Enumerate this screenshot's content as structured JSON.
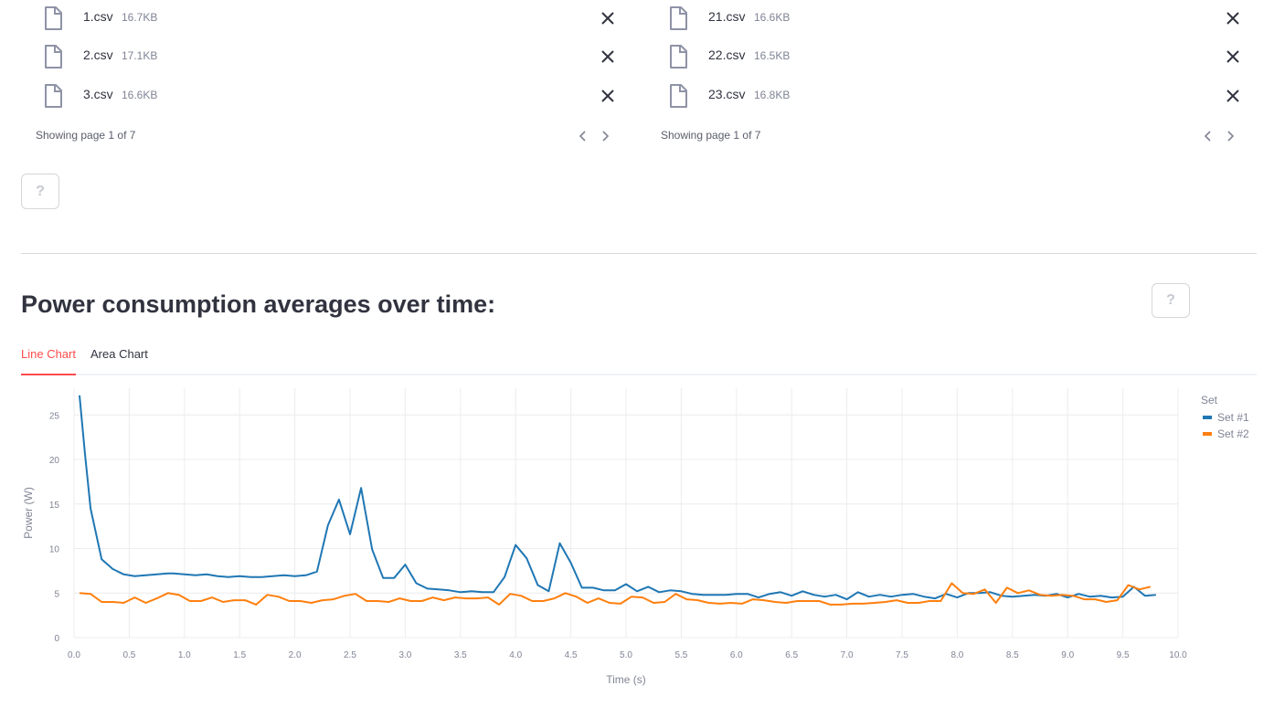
{
  "uploader": {
    "columns": [
      {
        "files": [
          {
            "name": "1.csv",
            "size": "16.7KB"
          },
          {
            "name": "2.csv",
            "size": "17.1KB"
          },
          {
            "name": "3.csv",
            "size": "16.6KB"
          }
        ],
        "pager_text": "Showing page 1 of 7"
      },
      {
        "files": [
          {
            "name": "21.csv",
            "size": "16.6KB"
          },
          {
            "name": "22.csv",
            "size": "16.5KB"
          },
          {
            "name": "23.csv",
            "size": "16.8KB"
          }
        ],
        "pager_text": "Showing page 1 of 7"
      }
    ],
    "help_label": "?"
  },
  "section": {
    "title": "Power consumption averages over time:",
    "help_label": "?"
  },
  "tabs": [
    {
      "label": "Line Chart",
      "active": true
    },
    {
      "label": "Area Chart",
      "active": false
    }
  ],
  "icons": {
    "file": "file-icon",
    "close": "close-icon",
    "prev": "chevron-left-icon",
    "next": "chevron-right-icon"
  },
  "colors": {
    "accent": "#ff4b4b",
    "set1": "#1f77b4",
    "set2": "#ff7f0e"
  },
  "chart_data": {
    "type": "line",
    "xlabel": "Time (s)",
    "ylabel": "Power (W)",
    "xlim": [
      0,
      10
    ],
    "ylim": [
      0,
      28
    ],
    "x_ticks": [
      "0.0",
      "0.5",
      "1.0",
      "1.5",
      "2.0",
      "2.5",
      "3.0",
      "3.5",
      "4.0",
      "4.5",
      "5.0",
      "5.5",
      "6.0",
      "6.5",
      "7.0",
      "7.5",
      "8.0",
      "8.5",
      "9.0",
      "9.5",
      "10.0"
    ],
    "y_ticks": [
      "0",
      "5",
      "10",
      "15",
      "20",
      "25"
    ],
    "grid": true,
    "legend_title": "Set",
    "legend_position": "top-right",
    "series": [
      {
        "name": "Set #1",
        "color": "#1f77b4",
        "points": [
          [
            0.05,
            27.2
          ],
          [
            0.1,
            20.5
          ],
          [
            0.15,
            14.5
          ],
          [
            0.25,
            8.8
          ],
          [
            0.35,
            7.7
          ],
          [
            0.45,
            7.1
          ],
          [
            0.55,
            6.9
          ],
          [
            0.65,
            7.0
          ],
          [
            0.75,
            7.1
          ],
          [
            0.85,
            7.2
          ],
          [
            0.9,
            7.2
          ],
          [
            1.0,
            7.1
          ],
          [
            1.1,
            7.0
          ],
          [
            1.2,
            7.1
          ],
          [
            1.3,
            6.9
          ],
          [
            1.4,
            6.8
          ],
          [
            1.5,
            6.9
          ],
          [
            1.6,
            6.8
          ],
          [
            1.7,
            6.8
          ],
          [
            1.8,
            6.9
          ],
          [
            1.9,
            7.0
          ],
          [
            2.0,
            6.9
          ],
          [
            2.1,
            7.0
          ],
          [
            2.2,
            7.4
          ],
          [
            2.3,
            12.6
          ],
          [
            2.4,
            15.5
          ],
          [
            2.5,
            11.6
          ],
          [
            2.6,
            16.8
          ],
          [
            2.7,
            9.9
          ],
          [
            2.8,
            6.7
          ],
          [
            2.9,
            6.7
          ],
          [
            3.0,
            8.2
          ],
          [
            3.1,
            6.1
          ],
          [
            3.2,
            5.5
          ],
          [
            3.3,
            5.4
          ],
          [
            3.4,
            5.3
          ],
          [
            3.5,
            5.1
          ],
          [
            3.6,
            5.2
          ],
          [
            3.7,
            5.1
          ],
          [
            3.8,
            5.1
          ],
          [
            3.9,
            6.8
          ],
          [
            4.0,
            10.4
          ],
          [
            4.1,
            8.9
          ],
          [
            4.2,
            5.9
          ],
          [
            4.3,
            5.2
          ],
          [
            4.4,
            10.6
          ],
          [
            4.5,
            8.4
          ],
          [
            4.6,
            5.6
          ],
          [
            4.7,
            5.6
          ],
          [
            4.8,
            5.3
          ],
          [
            4.9,
            5.3
          ],
          [
            5.0,
            6.0
          ],
          [
            5.1,
            5.2
          ],
          [
            5.2,
            5.7
          ],
          [
            5.3,
            5.1
          ],
          [
            5.4,
            5.3
          ],
          [
            5.5,
            5.2
          ],
          [
            5.6,
            4.9
          ],
          [
            5.7,
            4.8
          ],
          [
            5.8,
            4.8
          ],
          [
            5.9,
            4.8
          ],
          [
            6.0,
            4.9
          ],
          [
            6.1,
            4.9
          ],
          [
            6.2,
            4.5
          ],
          [
            6.3,
            4.9
          ],
          [
            6.4,
            5.1
          ],
          [
            6.5,
            4.7
          ],
          [
            6.6,
            5.2
          ],
          [
            6.7,
            4.8
          ],
          [
            6.8,
            4.6
          ],
          [
            6.9,
            4.8
          ],
          [
            7.0,
            4.3
          ],
          [
            7.1,
            5.1
          ],
          [
            7.2,
            4.6
          ],
          [
            7.3,
            4.8
          ],
          [
            7.4,
            4.6
          ],
          [
            7.5,
            4.8
          ],
          [
            7.6,
            4.9
          ],
          [
            7.7,
            4.6
          ],
          [
            7.8,
            4.4
          ],
          [
            7.9,
            4.9
          ],
          [
            8.0,
            4.5
          ],
          [
            8.1,
            5.0
          ],
          [
            8.2,
            5.0
          ],
          [
            8.3,
            5.1
          ],
          [
            8.4,
            4.7
          ],
          [
            8.5,
            4.6
          ],
          [
            8.6,
            4.7
          ],
          [
            8.7,
            4.8
          ],
          [
            8.8,
            4.7
          ],
          [
            8.9,
            4.9
          ],
          [
            9.0,
            4.5
          ],
          [
            9.1,
            4.9
          ],
          [
            9.2,
            4.6
          ],
          [
            9.3,
            4.7
          ],
          [
            9.4,
            4.5
          ],
          [
            9.5,
            4.6
          ],
          [
            9.6,
            5.7
          ],
          [
            9.7,
            4.7
          ],
          [
            9.8,
            4.8
          ]
        ]
      },
      {
        "name": "Set #2",
        "color": "#ff7f0e",
        "points": [
          [
            0.05,
            5.0
          ],
          [
            0.15,
            4.9
          ],
          [
            0.25,
            4.0
          ],
          [
            0.35,
            4.0
          ],
          [
            0.45,
            3.9
          ],
          [
            0.55,
            4.5
          ],
          [
            0.65,
            3.9
          ],
          [
            0.75,
            4.4
          ],
          [
            0.85,
            5.0
          ],
          [
            0.95,
            4.8
          ],
          [
            1.05,
            4.1
          ],
          [
            1.15,
            4.1
          ],
          [
            1.25,
            4.5
          ],
          [
            1.35,
            4.0
          ],
          [
            1.45,
            4.2
          ],
          [
            1.55,
            4.2
          ],
          [
            1.65,
            3.7
          ],
          [
            1.75,
            4.8
          ],
          [
            1.85,
            4.6
          ],
          [
            1.95,
            4.1
          ],
          [
            2.05,
            4.1
          ],
          [
            2.15,
            3.9
          ],
          [
            2.25,
            4.2
          ],
          [
            2.35,
            4.3
          ],
          [
            2.45,
            4.7
          ],
          [
            2.55,
            4.9
          ],
          [
            2.65,
            4.1
          ],
          [
            2.75,
            4.1
          ],
          [
            2.85,
            4.0
          ],
          [
            2.95,
            4.4
          ],
          [
            3.05,
            4.1
          ],
          [
            3.15,
            4.1
          ],
          [
            3.25,
            4.5
          ],
          [
            3.35,
            4.2
          ],
          [
            3.45,
            4.5
          ],
          [
            3.55,
            4.4
          ],
          [
            3.65,
            4.4
          ],
          [
            3.75,
            4.5
          ],
          [
            3.85,
            3.7
          ],
          [
            3.95,
            4.9
          ],
          [
            4.05,
            4.7
          ],
          [
            4.15,
            4.1
          ],
          [
            4.25,
            4.1
          ],
          [
            4.35,
            4.4
          ],
          [
            4.45,
            5.0
          ],
          [
            4.55,
            4.6
          ],
          [
            4.65,
            3.9
          ],
          [
            4.75,
            4.4
          ],
          [
            4.85,
            3.9
          ],
          [
            4.95,
            3.8
          ],
          [
            5.05,
            4.6
          ],
          [
            5.15,
            4.5
          ],
          [
            5.25,
            3.9
          ],
          [
            5.35,
            4.0
          ],
          [
            5.45,
            4.9
          ],
          [
            5.55,
            4.3
          ],
          [
            5.65,
            4.2
          ],
          [
            5.75,
            3.9
          ],
          [
            5.85,
            3.8
          ],
          [
            5.95,
            3.9
          ],
          [
            6.05,
            3.8
          ],
          [
            6.15,
            4.3
          ],
          [
            6.25,
            4.2
          ],
          [
            6.35,
            4.0
          ],
          [
            6.45,
            3.9
          ],
          [
            6.55,
            4.1
          ],
          [
            6.65,
            4.1
          ],
          [
            6.75,
            4.1
          ],
          [
            6.85,
            3.7
          ],
          [
            6.95,
            3.7
          ],
          [
            7.05,
            3.8
          ],
          [
            7.15,
            3.8
          ],
          [
            7.25,
            3.9
          ],
          [
            7.35,
            4.0
          ],
          [
            7.45,
            4.2
          ],
          [
            7.55,
            3.9
          ],
          [
            7.65,
            3.9
          ],
          [
            7.75,
            4.1
          ],
          [
            7.85,
            4.1
          ],
          [
            7.95,
            6.1
          ],
          [
            8.05,
            5.0
          ],
          [
            8.15,
            4.9
          ],
          [
            8.25,
            5.4
          ],
          [
            8.35,
            3.9
          ],
          [
            8.45,
            5.6
          ],
          [
            8.55,
            5.0
          ],
          [
            8.65,
            5.3
          ],
          [
            8.75,
            4.8
          ],
          [
            8.85,
            4.7
          ],
          [
            8.95,
            4.8
          ],
          [
            9.05,
            4.7
          ],
          [
            9.15,
            4.3
          ],
          [
            9.25,
            4.3
          ],
          [
            9.35,
            4.0
          ],
          [
            9.45,
            4.2
          ],
          [
            9.55,
            5.9
          ],
          [
            9.65,
            5.4
          ],
          [
            9.75,
            5.7
          ]
        ]
      }
    ]
  }
}
